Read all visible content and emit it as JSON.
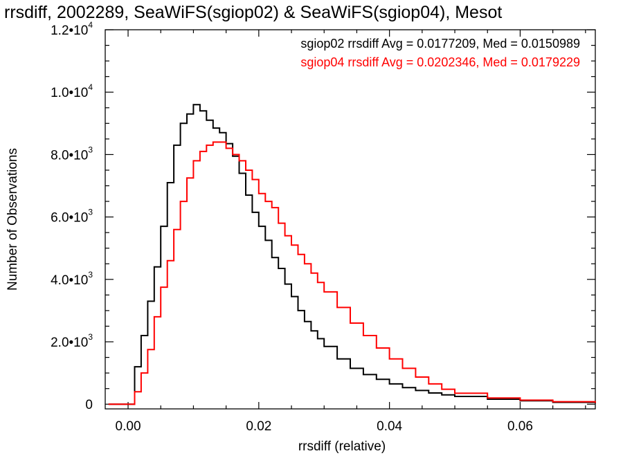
{
  "chart_data": {
    "type": "line",
    "step": true,
    "title": "rrsdiff, 2002289, SeaWiFS(sgiop02) & SeaWiFS(sgiop04), Mesot",
    "xlabel": "rrsdiff (relative)",
    "ylabel": "Number of Observations",
    "xlim": [
      -0.0035,
      0.0715
    ],
    "ylim": [
      -150,
      12000
    ],
    "x_ticks": [
      {
        "value": 0.0,
        "label": "0.00"
      },
      {
        "value": 0.02,
        "label": "0.02"
      },
      {
        "value": 0.04,
        "label": "0.04"
      },
      {
        "value": 0.06,
        "label": "0.06"
      }
    ],
    "y_ticks": [
      {
        "value": 0,
        "mantissa": "0",
        "exponent": ""
      },
      {
        "value": 2000,
        "mantissa": "2.0•10",
        "exponent": "3"
      },
      {
        "value": 4000,
        "mantissa": "4.0•10",
        "exponent": "3"
      },
      {
        "value": 6000,
        "mantissa": "6.0•10",
        "exponent": "3"
      },
      {
        "value": 8000,
        "mantissa": "8.0•10",
        "exponent": "3"
      },
      {
        "value": 10000,
        "mantissa": "1.0•10",
        "exponent": "4"
      },
      {
        "value": 12000,
        "mantissa": "1.2•10",
        "exponent": "4"
      }
    ],
    "legend_position": "top-right",
    "series": [
      {
        "name": "sgiop02",
        "color": "#000000",
        "legend_label": "sgiop02 rrsdiff Avg = 0.0177209, Med = 0.0150989",
        "x": [
          -0.003,
          0.0,
          0.001,
          0.002,
          0.003,
          0.004,
          0.005,
          0.006,
          0.007,
          0.008,
          0.009,
          0.01,
          0.011,
          0.012,
          0.013,
          0.014,
          0.015,
          0.016,
          0.017,
          0.018,
          0.019,
          0.02,
          0.021,
          0.022,
          0.023,
          0.024,
          0.025,
          0.026,
          0.027,
          0.028,
          0.029,
          0.03,
          0.032,
          0.034,
          0.036,
          0.038,
          0.04,
          0.042,
          0.044,
          0.046,
          0.048,
          0.05,
          0.055,
          0.06,
          0.065,
          0.0715
        ],
        "y": [
          0,
          0,
          1200,
          2200,
          3300,
          4400,
          5700,
          7100,
          8300,
          9000,
          9300,
          9600,
          9400,
          9100,
          8850,
          8700,
          8350,
          7950,
          7400,
          6700,
          6150,
          5700,
          5250,
          4700,
          4350,
          3850,
          3450,
          3000,
          2650,
          2350,
          2100,
          1850,
          1450,
          1150,
          950,
          800,
          650,
          530,
          440,
          360,
          300,
          250,
          160,
          110,
          60,
          30
        ]
      },
      {
        "name": "sgiop04",
        "color": "#ff0000",
        "legend_label": "sgiop04 rrsdiff Avg = 0.0202346, Med = 0.0179229",
        "x": [
          -0.003,
          0.0,
          0.001,
          0.002,
          0.003,
          0.004,
          0.005,
          0.006,
          0.007,
          0.008,
          0.009,
          0.01,
          0.011,
          0.012,
          0.013,
          0.014,
          0.015,
          0.016,
          0.017,
          0.018,
          0.019,
          0.02,
          0.021,
          0.022,
          0.023,
          0.024,
          0.025,
          0.026,
          0.027,
          0.028,
          0.029,
          0.03,
          0.032,
          0.034,
          0.036,
          0.038,
          0.04,
          0.042,
          0.044,
          0.046,
          0.048,
          0.05,
          0.055,
          0.06,
          0.065,
          0.0715
        ],
        "y": [
          0,
          0,
          400,
          1000,
          1750,
          2800,
          3750,
          4600,
          5600,
          6500,
          7250,
          7800,
          8100,
          8300,
          8400,
          8400,
          8200,
          8000,
          7800,
          7500,
          7200,
          6750,
          6500,
          6300,
          5800,
          5400,
          5100,
          4800,
          4500,
          4200,
          3900,
          3600,
          3100,
          2600,
          2200,
          1800,
          1450,
          1150,
          870,
          650,
          480,
          350,
          200,
          130,
          80,
          40
        ]
      }
    ]
  }
}
